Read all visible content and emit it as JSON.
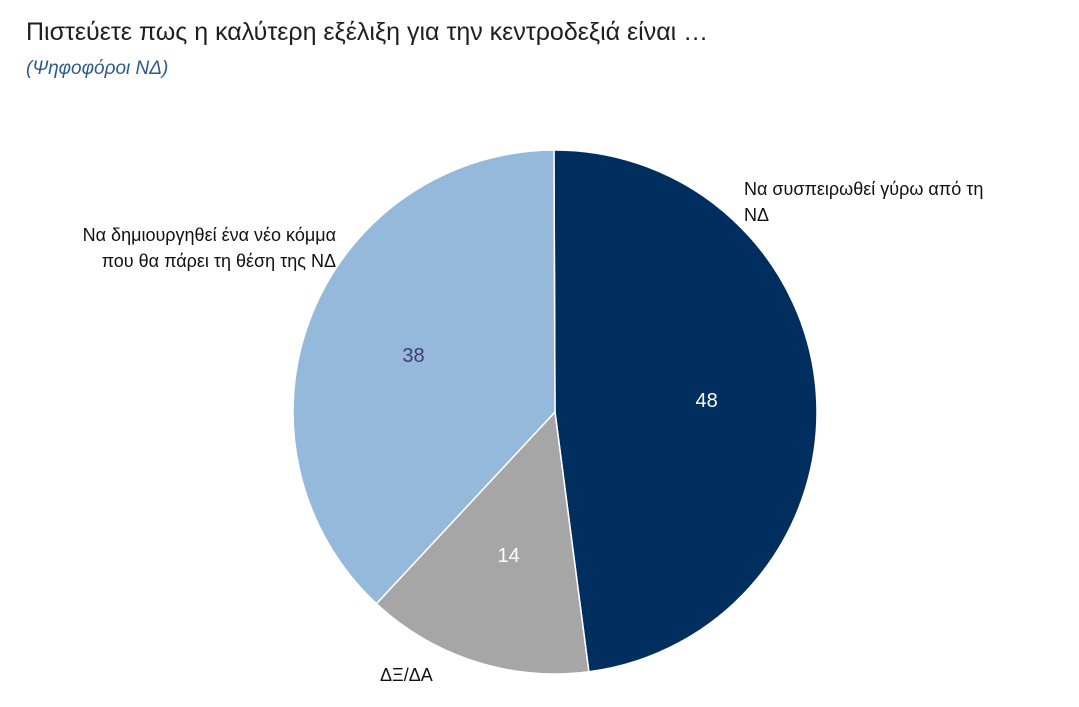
{
  "header": {
    "title": "Πιστεύετε πως η καλύτερη εξέλιξη για την κεντροδεξιά είναι …",
    "subtitle": "(Ψηφοφόροι ΝΔ)"
  },
  "chart_data": {
    "type": "pie",
    "title": "Πιστεύετε πως η καλύτερη εξέλιξη για την κεντροδεξιά είναι …",
    "subtitle": "(Ψηφοφόροι ΝΔ)",
    "slices": [
      {
        "label": "Να συσπειρωθεί γύρω από τη ΝΔ",
        "value": 48,
        "value_label": "48",
        "color": "#002f5f",
        "label_color": "#ffffff"
      },
      {
        "label": "ΔΞ/ΔΑ",
        "value": 14,
        "value_label": "14",
        "color": "#a6a6a6",
        "label_color": "#ffffff"
      },
      {
        "label": "Να δημιουργηθεί ένα νέο κόμμα που θα πάρει τη θέση της ΝΔ",
        "value": 38,
        "value_label": "38",
        "color": "#95b9da",
        "label_color": "#3f3a7a"
      }
    ],
    "labels_display": {
      "right_line1": "Να συσπειρωθεί γύρω από τη",
      "right_line2": "ΝΔ",
      "left_line1": "Να δημιουργηθεί ένα νέο κόμμα",
      "left_line2": "που θα πάρει τη θέση της ΝΔ",
      "bottom": "ΔΞ/ΔΑ"
    },
    "start": "top",
    "direction": "clockwise",
    "legend": "none"
  }
}
